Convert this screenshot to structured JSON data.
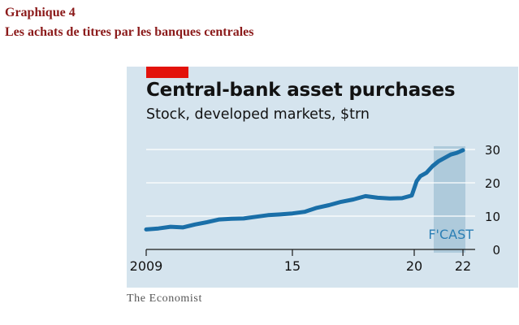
{
  "header": {
    "line1": "Graphique 4",
    "line2": "Les achats de titres par les banques centrales"
  },
  "colors": {
    "heading": "#8b1a1a",
    "panel": "#d5e4ee",
    "line": "#1a6fa8",
    "forecast_shade": "#aecadb",
    "red_tag": "#e3120b"
  },
  "chart_data": {
    "type": "line",
    "title": "Central-bank asset purchases",
    "subtitle": "Stock, developed markets, $trn",
    "xlim": [
      2009,
      2022.5
    ],
    "ylim": [
      0,
      30
    ],
    "y_axis_side": "right",
    "x_ticks": [
      {
        "value": 2009,
        "label": "2009"
      },
      {
        "value": 2015,
        "label": "15"
      },
      {
        "value": 2020,
        "label": "20"
      },
      {
        "value": 2022,
        "label": "22"
      }
    ],
    "y_ticks": [
      {
        "value": 0,
        "label": "0"
      },
      {
        "value": 10,
        "label": "10"
      },
      {
        "value": 20,
        "label": "20"
      },
      {
        "value": 30,
        "label": "30"
      }
    ],
    "grid": true,
    "forecast_region": {
      "x_start": 2020.8,
      "x_end": 2022.1,
      "label": "F'CAST"
    },
    "series": [
      {
        "x": [
          2009.0,
          2009.5,
          2010.0,
          2010.5,
          2011.0,
          2011.5,
          2012.0,
          2012.5,
          2013.0,
          2013.5,
          2014.0,
          2014.5,
          2015.0,
          2015.5,
          2016.0,
          2016.5,
          2017.0,
          2017.5,
          2018.0,
          2018.5,
          2019.0,
          2019.5,
          2019.9,
          2020.1,
          2020.25,
          2020.5,
          2020.75,
          2021.0,
          2021.25,
          2021.5,
          2021.75,
          2022.0
        ],
        "y": [
          6.0,
          6.3,
          6.8,
          6.6,
          7.5,
          8.2,
          9.0,
          9.2,
          9.3,
          9.8,
          10.3,
          10.5,
          10.8,
          11.3,
          12.5,
          13.3,
          14.3,
          15.0,
          16.0,
          15.5,
          15.3,
          15.4,
          16.2,
          20.5,
          22.0,
          23.0,
          25.0,
          26.5,
          27.5,
          28.5,
          29.0,
          29.8
        ]
      }
    ]
  },
  "credit": "The Economist"
}
